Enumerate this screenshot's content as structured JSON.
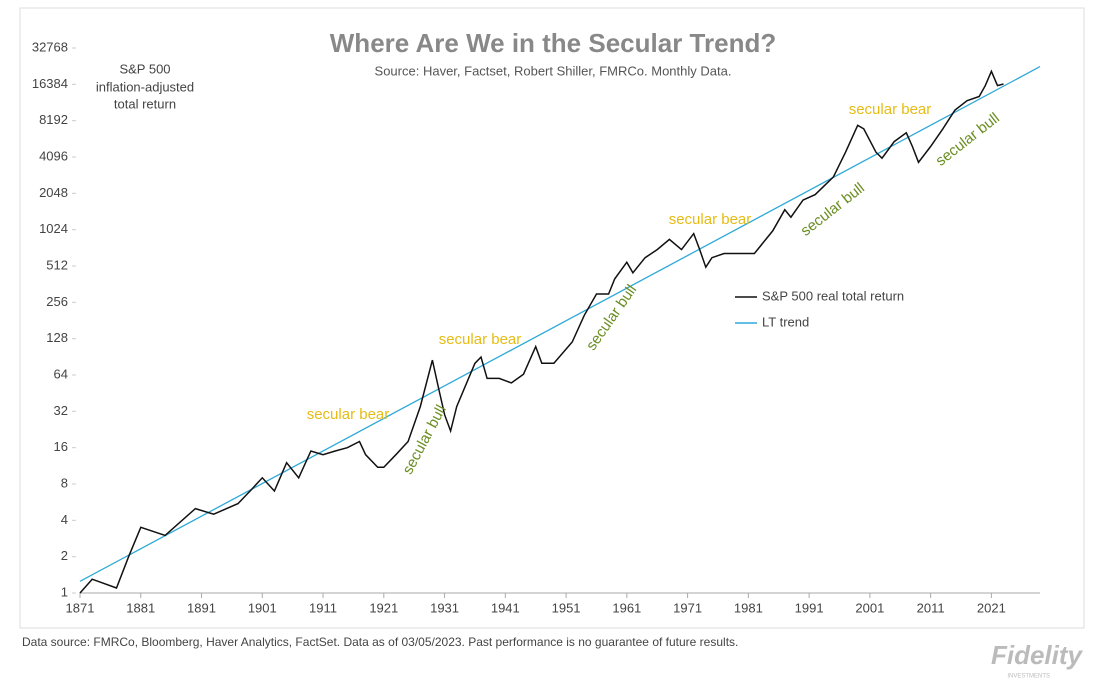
{
  "chart_data": {
    "type": "line",
    "title": "Where Are We in the Secular Trend?",
    "subtitle": "Source: Haver, Factset, Robert Shiller, FMRCo.  Monthly Data.",
    "y_note": [
      "S&P 500",
      "inflation-adjusted",
      "total return"
    ],
    "footnote": "Data source: FMRCo, Bloomberg, Haver Analytics, FactSet. Data as of 03/05/2023. Past performance is no guarantee of future results.",
    "logo": {
      "name": "Fidelity",
      "sub": "INVESTMENTS"
    },
    "log_scale": "base2",
    "legend": "center",
    "xlim": [
      1871,
      2029
    ],
    "ylim": [
      1,
      32768
    ],
    "xticks": [
      1871,
      1881,
      1891,
      1901,
      1911,
      1921,
      1931,
      1941,
      1951,
      1961,
      1971,
      1981,
      1991,
      2001,
      2011,
      2021
    ],
    "yticks": [
      1,
      2,
      4,
      8,
      16,
      32,
      64,
      128,
      256,
      512,
      1024,
      2048,
      4096,
      8192,
      16384,
      32768
    ],
    "series": [
      {
        "name": "S&P 500 real total return",
        "color": "#111111",
        "x": [
          1871,
          1873,
          1877,
          1879,
          1881,
          1885,
          1890,
          1893,
          1897,
          1899,
          1901,
          1903,
          1905,
          1907,
          1909,
          1911,
          1913,
          1915,
          1917,
          1918,
          1920,
          1921,
          1923,
          1925,
          1927,
          1929,
          1930,
          1931,
          1932,
          1933,
          1936,
          1937,
          1938,
          1940,
          1942,
          1944,
          1946,
          1947,
          1949,
          1952,
          1954,
          1956,
          1958,
          1959,
          1961,
          1962,
          1964,
          1966,
          1968,
          1970,
          1972,
          1973,
          1974,
          1975,
          1977,
          1979,
          1981,
          1982,
          1985,
          1987,
          1988,
          1990,
          1992,
          1995,
          1997,
          1999,
          2000,
          2002,
          2003,
          2005,
          2007,
          2008,
          2009,
          2011,
          2013,
          2015,
          2017,
          2019,
          2020,
          2021,
          2022,
          2023
        ],
        "values": [
          1,
          1.3,
          1.1,
          2,
          3.5,
          3,
          5,
          4.5,
          5.5,
          7,
          9,
          7,
          12,
          9,
          15,
          14,
          15,
          16,
          18,
          14,
          11,
          11,
          14,
          18,
          35,
          85,
          50,
          30,
          22,
          35,
          80,
          90,
          60,
          60,
          55,
          65,
          110,
          80,
          80,
          120,
          200,
          300,
          300,
          400,
          550,
          450,
          600,
          700,
          850,
          700,
          950,
          700,
          500,
          600,
          650,
          650,
          650,
          650,
          1000,
          1500,
          1300,
          1800,
          2000,
          2800,
          4500,
          7500,
          7000,
          4500,
          4000,
          5500,
          6500,
          5000,
          3700,
          5000,
          7000,
          10000,
          12000,
          13000,
          16000,
          21000,
          16000,
          16500
        ]
      },
      {
        "name": "LT trend",
        "color": "#2fa9d8",
        "x": [
          1871,
          2029
        ],
        "values": [
          1.25,
          23000
        ]
      }
    ],
    "annotations": [
      {
        "text": "secular bear",
        "color": "#e6bc14"
      },
      {
        "text": "secular bull",
        "color": "#6b8e23"
      },
      {
        "text": "secular bear",
        "color": "#e6bc14"
      },
      {
        "text": "secular bull",
        "color": "#6b8e23"
      },
      {
        "text": "secular bear",
        "color": "#e6bc14"
      },
      {
        "text": "secular bull",
        "color": "#6b8e23"
      },
      {
        "text": "secular bear",
        "color": "#e6bc14"
      },
      {
        "text": "secular bull",
        "color": "#6b8e23"
      }
    ]
  }
}
